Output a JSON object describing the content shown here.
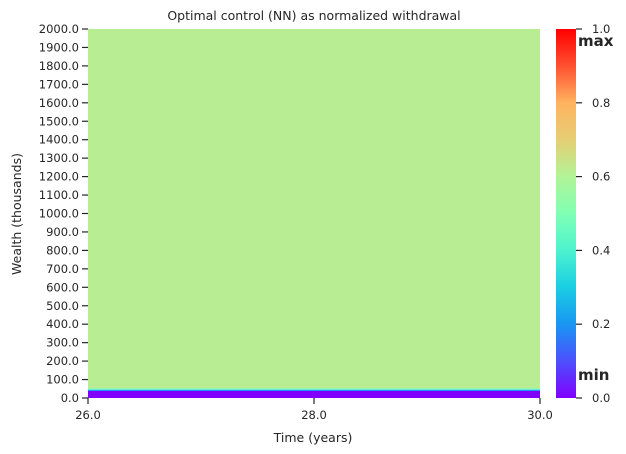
{
  "chart_data": {
    "type": "heatmap",
    "title": "Optimal control (NN) as normalized withdrawal",
    "xlabel": "Time (years)",
    "ylabel": "Wealth (thousands)",
    "xlim": [
      26.0,
      30.0
    ],
    "ylim": [
      0.0,
      2000.0
    ],
    "x_ticks": [
      "26.0",
      "28.0",
      "30.0"
    ],
    "y_ticks": [
      "0.0",
      "100.0",
      "200.0",
      "300.0",
      "400.0",
      "500.0",
      "600.0",
      "700.0",
      "800.0",
      "900.0",
      "1000.0",
      "1100.0",
      "1200.0",
      "1300.0",
      "1400.0",
      "1500.0",
      "1600.0",
      "1700.0",
      "1800.0",
      "1900.0",
      "2000.0"
    ],
    "bands": [
      {
        "wealth_from": 0,
        "wealth_to": 38,
        "value": 0.0
      },
      {
        "wealth_from": 38,
        "wealth_to": 45,
        "value": 0.2
      },
      {
        "wealth_from": 45,
        "wealth_to": 52,
        "value": 0.45
      },
      {
        "wealth_from": 52,
        "wealth_to": 2000,
        "value": 0.6
      }
    ],
    "colorbar": {
      "min": 0.0,
      "max": 1.0,
      "ticks": [
        "0.0",
        "0.2",
        "0.4",
        "0.6",
        "0.8",
        "1.0"
      ],
      "max_label": "max",
      "min_label": "min",
      "colormap": "rainbow"
    }
  }
}
